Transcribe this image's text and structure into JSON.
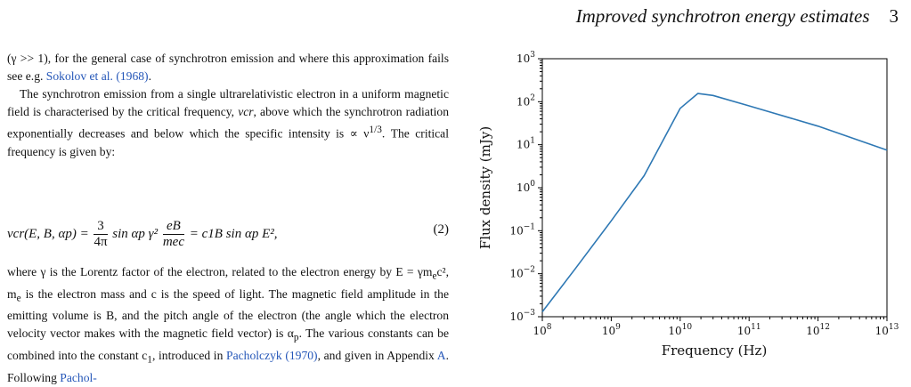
{
  "header": {
    "running_title": "Improved synchrotron energy estimates",
    "page_number": "3"
  },
  "text": {
    "p1_a": "(γ >> 1), for the general case of synchrotron emission and where this approximation fails see e.g. ",
    "p1_cite": "Sokolov et al. (1968)",
    "p1_b": ".",
    "p2_a": "The synchrotron emission from a single ultrarelativistic electron in a uniform magnetic field is characterised by the critical frequency, ",
    "p2_b": ", above which the synchrotron radiation exponentially decreases and below which the specific intensity is ∝ ν",
    "p2_b_exp": "1/3",
    "p2_c": ". The critical frequency is given by:",
    "p3_a": "where γ is the Lorentz factor of the electron, related to the electron energy by E = γm",
    "p3_b": "c², m",
    "p3_c": " is the electron mass and c is the speed of light. The magnetic field amplitude in the emitting volume is B, and the pitch angle of the electron (the angle which the electron velocity vector makes with the magnetic field vector) is α",
    "p3_d": ". The various constants can be combined into the constant c",
    "p3_e": ", introduced in ",
    "p3_cite1": "Pacholczyk (1970)",
    "p3_f": ", and given in Appendix ",
    "p3_cite2": "A",
    "p3_g": ". Following ",
    "p3_cite3": "Pachol-",
    "nu_cr": "νcr",
    "e_sub": "e",
    "p_sub": "p",
    "one_sub": "1"
  },
  "equation": {
    "lhs": "νcr(E, B, αp) =",
    "frac1_num": "3",
    "frac1_den": "4π",
    "mid": "sin αp γ²",
    "frac2_num": "eB",
    "frac2_den": "mec",
    "rhs": "= c1B sin αp E²,",
    "number": "(2)"
  },
  "chart_data": {
    "type": "line",
    "xlabel": "Frequency (Hz)",
    "ylabel": "Flux density (mJy)",
    "xscale": "log",
    "yscale": "log",
    "xlim": [
      100000000.0,
      10000000000000.0
    ],
    "ylim": [
      0.001,
      1000
    ],
    "x_tick_labels": [
      "10^8",
      "10^9",
      "10^10",
      "10^11",
      "10^12",
      "10^13"
    ],
    "y_tick_labels": [
      "10^-3",
      "10^-2",
      "10^-1",
      "10^0",
      "10^1",
      "10^2",
      "10^3"
    ],
    "series": [
      {
        "color": "#2e78b4",
        "x": [
          100000000.0,
          300000000.0,
          1000000000.0,
          3000000000.0,
          10000000000.0,
          18000000000.0,
          30000000000.0,
          100000000000.0,
          1000000000000.0,
          10000000000000.0
        ],
        "values": [
          0.0013,
          0.013,
          0.17,
          1.9,
          70,
          155,
          140,
          80,
          27,
          7.5
        ]
      }
    ],
    "grid": false
  }
}
